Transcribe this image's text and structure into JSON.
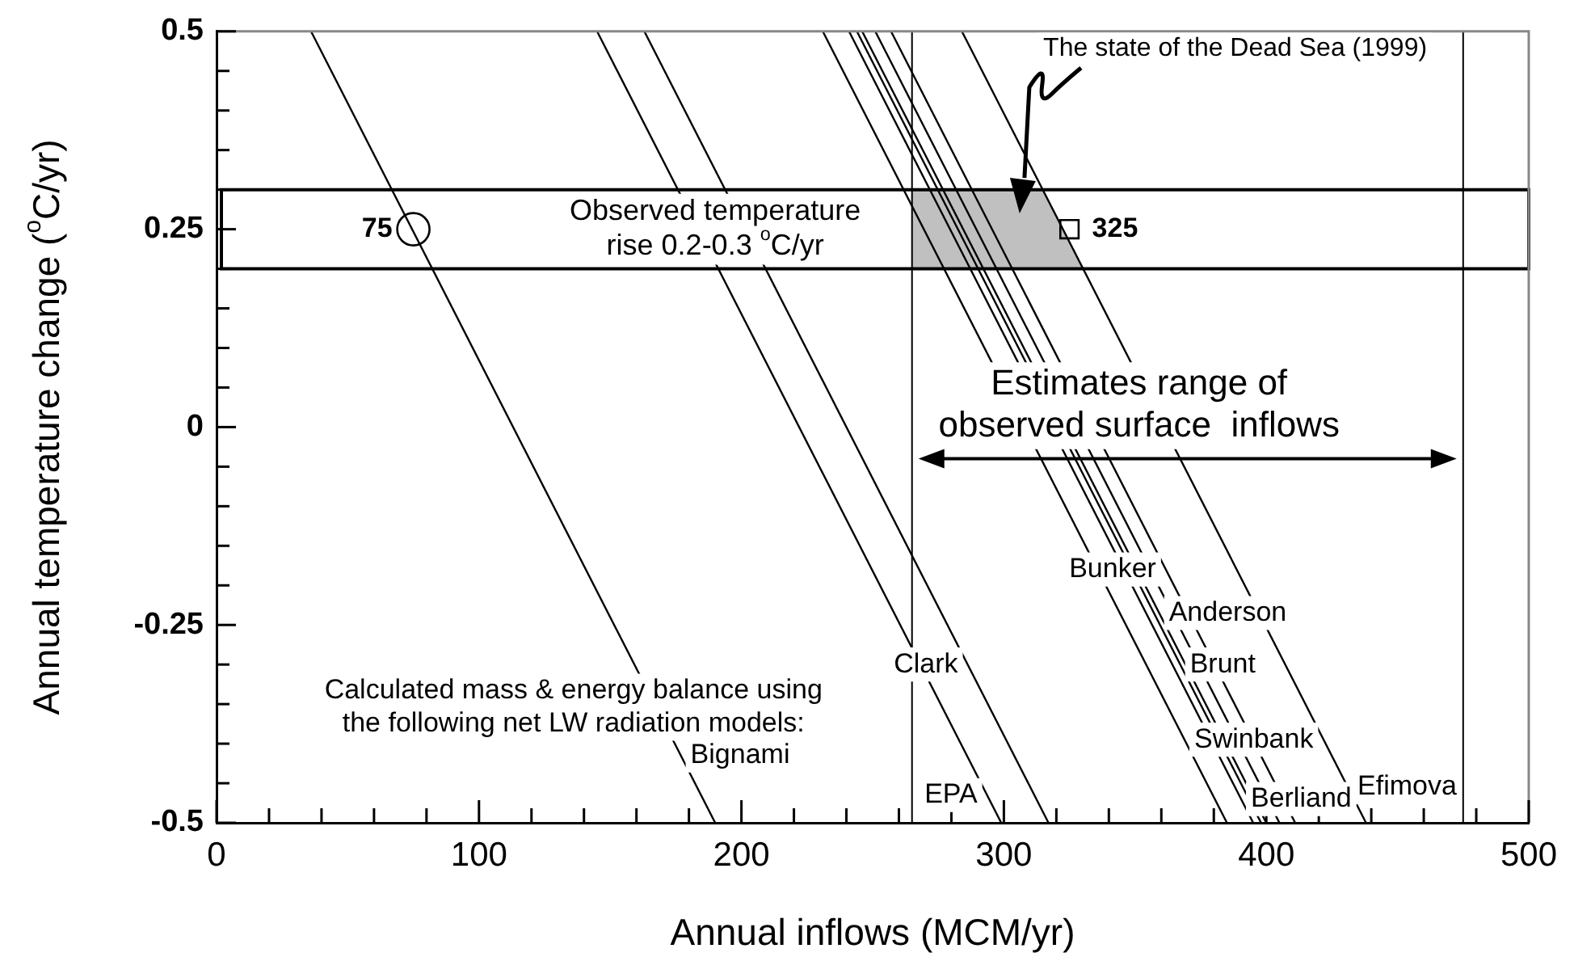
{
  "chart_data": {
    "type": "line",
    "xlabel": "Annual inflows (MCM/yr)",
    "ylabel": "Annual temperature change ($^{o}$C/yr)",
    "xlim": [
      0,
      500
    ],
    "xticks": [
      0,
      {
        "value": 20,
        "label": null
      },
      {
        "value": 40,
        "label": null
      },
      {
        "value": 60,
        "label": null
      },
      {
        "value": 80,
        "label": null
      },
      100,
      {
        "value": 120,
        "label": null
      },
      {
        "value": 140,
        "label": null
      },
      {
        "value": 160,
        "label": null
      },
      {
        "value": 180,
        "label": null
      },
      200,
      {
        "value": 220,
        "label": null
      },
      {
        "value": 240,
        "label": null
      },
      {
        "value": 260,
        "label": null
      },
      {
        "value": 280,
        "label": null
      },
      300,
      {
        "value": 320,
        "label": null
      },
      {
        "value": 340,
        "label": null
      },
      {
        "value": 360,
        "label": null
      },
      {
        "value": 380,
        "label": null
      },
      400,
      {
        "value": 420,
        "label": null
      },
      {
        "value": 440,
        "label": null
      },
      {
        "value": 460,
        "label": null
      },
      {
        "value": 480,
        "label": null
      },
      500
    ],
    "ylim": [
      -0.5,
      0.5
    ],
    "yticks": [
      -0.5,
      {
        "value": -0.45,
        "label": null
      },
      {
        "value": -0.4,
        "label": null
      },
      {
        "value": -0.35,
        "label": null
      },
      {
        "value": -0.3,
        "label": null
      },
      -0.25,
      {
        "value": -0.2,
        "label": null
      },
      {
        "value": -0.15,
        "label": null
      },
      {
        "value": -0.1,
        "label": null
      },
      {
        "value": -0.05,
        "label": null
      },
      0,
      {
        "value": 0.05,
        "label": null
      },
      {
        "value": 0.1,
        "label": null
      },
      {
        "value": 0.15,
        "label": null
      },
      {
        "value": 0.2,
        "label": null
      },
      0.25,
      {
        "value": 0.3,
        "label": null
      },
      {
        "value": 0.35,
        "label": null
      },
      {
        "value": 0.4,
        "label": null
      },
      {
        "value": 0.45,
        "label": null
      },
      0.5
    ],
    "grid": false,
    "legend": false,
    "series": [
      {
        "name": "Bignami",
        "color": "#000000",
        "x": [
          36,
          190
        ],
        "values": [
          0.5,
          -0.5
        ]
      },
      {
        "name": "EPA",
        "color": "#000000",
        "x": [
          145,
          299
        ],
        "values": [
          0.5,
          -0.5
        ]
      },
      {
        "name": "Clark",
        "color": "#000000",
        "x": [
          163,
          317
        ],
        "values": [
          0.5,
          -0.5
        ]
      },
      {
        "name": "Swinbank",
        "color": "#000000",
        "x": [
          231,
          385
        ],
        "values": [
          0.5,
          -0.5
        ]
      },
      {
        "name": "Berliand",
        "color": "#000000",
        "x": [
          241,
          395
        ],
        "values": [
          0.5,
          -0.5
        ]
      },
      {
        "name": "Brunt",
        "color": "#000000",
        "x": [
          244,
          398
        ],
        "values": [
          0.5,
          -0.5
        ]
      },
      {
        "name": "Anderson",
        "color": "#000000",
        "x": [
          246,
          400
        ],
        "values": [
          0.5,
          -0.5
        ]
      },
      {
        "color": "#000000",
        "x": [
          251,
          405
        ],
        "values": [
          0.5,
          -0.5
        ]
      },
      {
        "name": "Bunker",
        "color": "#000000",
        "x": [
          257,
          411
        ],
        "values": [
          0.5,
          -0.5
        ]
      },
      {
        "name": "Efimova",
        "color": "#000000",
        "x": [
          284,
          438
        ],
        "values": [
          0.5,
          -0.5
        ]
      },
      {
        "type": "scatter",
        "marker": "circle",
        "color": "#000000",
        "x": [
          75
        ],
        "values": [
          0.25
        ]
      },
      {
        "type": "scatter",
        "marker": "square",
        "color": "#000000",
        "x": [
          325
        ],
        "values": [
          0.25
        ]
      }
    ],
    "bands": [
      {
        "axis": "y",
        "from": 0.2,
        "to": 0.3,
        "color": "#c0c0c0",
        "label": "Observed temperature\nrise 0.2-0.3 $^{o}$C/yr"
      }
    ],
    "ref_lines": [
      {
        "axis": "x",
        "value": 265,
        "color": "#000000"
      },
      {
        "axis": "x",
        "value": 475,
        "color": "#000000"
      }
    ],
    "annotations": [
      {
        "text": "75",
        "x": 75,
        "y": 0.25
      },
      {
        "text": "325",
        "x": 325,
        "y": 0.25
      },
      "The state of the Dead Sea (1999)",
      "Estimates range of\nobserved surface  inflows",
      "Calculated mass & energy balance using\nthe following net LW radiation models:"
    ]
  }
}
